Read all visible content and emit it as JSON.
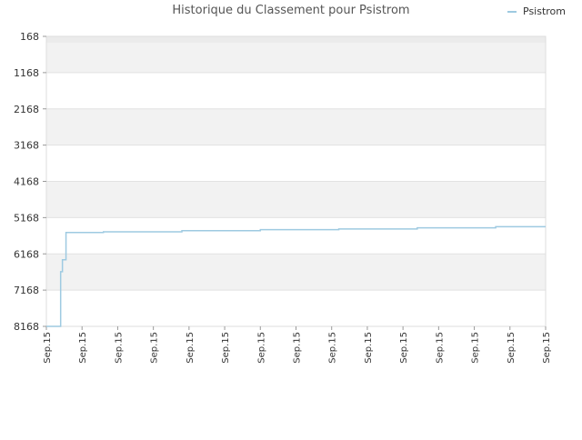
{
  "chart_data": {
    "type": "line",
    "title": "Historique du Classement pour Psistrom",
    "xlabel": "",
    "ylabel": "",
    "y_inverted": true,
    "ylim": [
      168,
      8168
    ],
    "y_ticks": [
      168,
      1168,
      2168,
      3168,
      4168,
      5168,
      6168,
      7168,
      8168
    ],
    "x_tick_labels": [
      "Sep.15",
      "Sep.15",
      "Sep.15",
      "Sep.15",
      "Sep.15",
      "Sep.15",
      "Sep.15",
      "Sep.15",
      "Sep.15",
      "Sep.15",
      "Sep.15",
      "Sep.15",
      "Sep.15",
      "Sep.15",
      "Sep.15"
    ],
    "legend_position": "top-right",
    "grid": true,
    "series": [
      {
        "name": "Psistrom",
        "color": "#9ecae1",
        "x": [
          0.0,
          0.4,
          0.45,
          0.55,
          1.6,
          3.8,
          6.0,
          8.2,
          10.4,
          12.6,
          14.0
        ],
        "values": [
          8168,
          6660,
          6330,
          5580,
          5560,
          5530,
          5500,
          5480,
          5450,
          5420,
          5420
        ]
      }
    ]
  }
}
